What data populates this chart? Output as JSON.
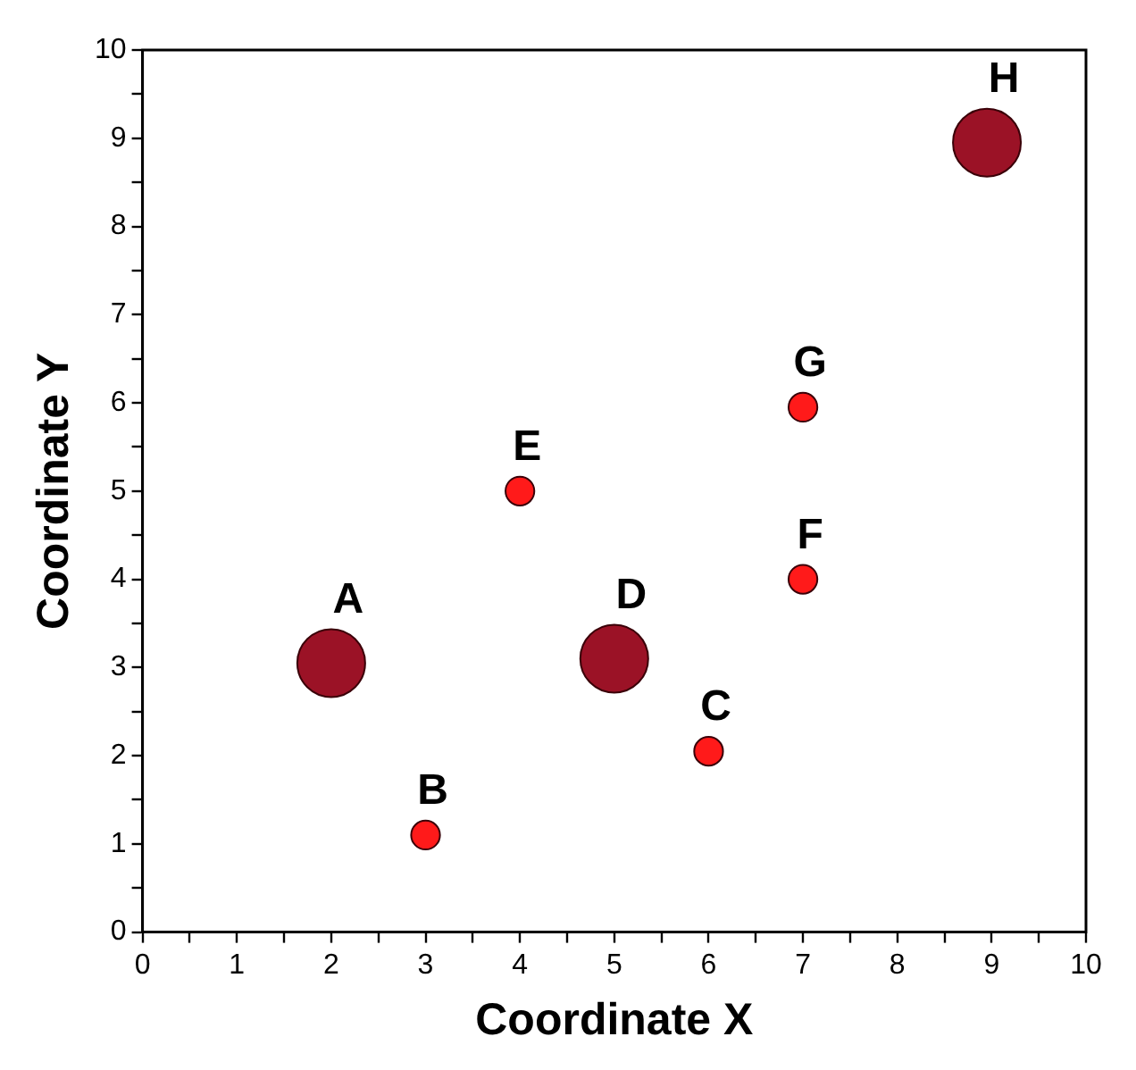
{
  "chart_data": {
    "type": "bubble",
    "xlabel": "Coordinate X",
    "ylabel": "Coordinate Y",
    "x": [
      2,
      3,
      6,
      5,
      4,
      7,
      7,
      8.95
    ],
    "values": [
      3.05,
      1.1,
      2.05,
      3.1,
      5,
      4,
      5.95,
      8.95
    ],
    "sizes": [
      1,
      0.18,
      0.18,
      1,
      0.18,
      0.18,
      0.18,
      1
    ],
    "colors": [
      "#9b1226",
      "#ff1a1a",
      "#ff1a1a",
      "#9b1226",
      "#ff1a1a",
      "#ff1a1a",
      "#ff1a1a",
      "#9b1226"
    ],
    "xlim": [
      0,
      10
    ],
    "ylim": [
      0,
      10
    ],
    "xticks": [
      0,
      {
        "value": 0.5,
        "label": null
      },
      1,
      {
        "value": 1.5,
        "label": null
      },
      2,
      {
        "value": 2.5,
        "label": null
      },
      3,
      {
        "value": 3.5,
        "label": null
      },
      4,
      {
        "value": 4.5,
        "label": null
      },
      5,
      {
        "value": 5.5,
        "label": null
      },
      6,
      {
        "value": 6.5,
        "label": null
      },
      7,
      {
        "value": 7.5,
        "label": null
      },
      8,
      {
        "value": 8.5,
        "label": null
      },
      9,
      {
        "value": 9.5,
        "label": null
      },
      10
    ],
    "yticks": [
      0,
      {
        "value": 0.5,
        "label": null
      },
      1,
      {
        "value": 1.5,
        "label": null
      },
      2,
      {
        "value": 2.5,
        "label": null
      },
      3,
      {
        "value": 3.5,
        "label": null
      },
      4,
      {
        "value": 4.5,
        "label": null
      },
      5,
      {
        "value": 5.5,
        "label": null
      },
      6,
      {
        "value": 6.5,
        "label": null
      },
      7,
      {
        "value": 7.5,
        "label": null
      },
      8,
      {
        "value": 8.5,
        "label": null
      },
      9,
      {
        "value": 9.5,
        "label": null
      },
      10
    ],
    "grid": false,
    "legend": false,
    "annotations": [
      {
        "text": "A",
        "x": 2,
        "y": 3.05
      },
      {
        "text": "B",
        "x": 3,
        "y": 1.1
      },
      {
        "text": "C",
        "x": 6,
        "y": 2.05
      },
      {
        "text": "D",
        "x": 5,
        "y": 3.1
      },
      {
        "text": "E",
        "x": 4,
        "y": 5
      },
      {
        "text": "F",
        "x": 7,
        "y": 4
      },
      {
        "text": "G",
        "x": 7,
        "y": 5.95
      },
      {
        "text": "H",
        "x": 8.95,
        "y": 8.95
      }
    ]
  }
}
